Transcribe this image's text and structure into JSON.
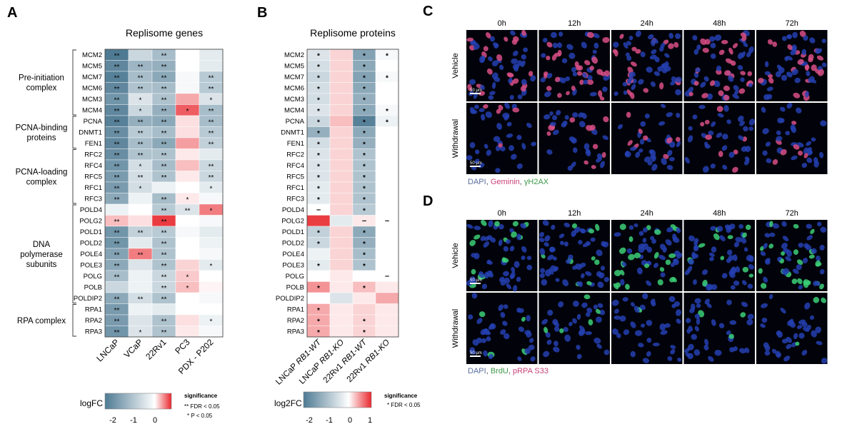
{
  "panelA": {
    "letter": "A",
    "title": "Replisome genes",
    "genes": [
      "MCM2",
      "MCM5",
      "MCM7",
      "MCM6",
      "MCM3",
      "MCM4",
      "PCNA",
      "DNMT1",
      "FEN1",
      "RFC2",
      "RFC4",
      "RFC5",
      "RFC1",
      "RFC3",
      "POLD4",
      "POLG2",
      "POLD1",
      "POLD2",
      "POLE4",
      "POLE3",
      "POLG",
      "POLB",
      "POLDIP2",
      "RPA1",
      "RPA2",
      "RPA3"
    ],
    "columns": [
      "LNCaP",
      "VCaP",
      "22Rv1",
      "PC3",
      "PDX - P202"
    ],
    "groups": [
      {
        "name": "Pre-initiation\ncomplex",
        "start": 0,
        "end": 5
      },
      {
        "name": "PCNA-binding\nproteins",
        "start": 6,
        "end": 8
      },
      {
        "name": "PCNA-loading\ncomplex",
        "start": 9,
        "end": 13
      },
      {
        "name": "DNA\npolymerase\nsubunits",
        "start": 14,
        "end": 22
      },
      {
        "name": "RPA complex",
        "start": 23,
        "end": 25
      }
    ],
    "logfc": [
      [
        -2.0,
        -0.6,
        -1.0,
        0.0,
        -0.3
      ],
      [
        -1.8,
        -1.1,
        -1.2,
        0.0,
        -0.3
      ],
      [
        -1.9,
        -1.0,
        -1.3,
        -0.1,
        -0.8
      ],
      [
        -1.8,
        -0.9,
        -1.0,
        -0.1,
        -0.8
      ],
      [
        -1.6,
        -0.4,
        -0.9,
        0.8,
        -0.4
      ],
      [
        -1.8,
        -0.6,
        -1.2,
        1.5,
        -1.0
      ],
      [
        -1.9,
        -1.2,
        -1.3,
        0.3,
        -1.0
      ],
      [
        -1.7,
        -0.8,
        -1.0,
        0.3,
        -0.8
      ],
      [
        -1.8,
        -1.0,
        -1.3,
        0.9,
        -0.7
      ],
      [
        -1.7,
        -0.9,
        -0.9,
        0.2,
        -0.3
      ],
      [
        -1.6,
        -0.5,
        -1.0,
        0.6,
        -0.6
      ],
      [
        -1.5,
        -0.5,
        -0.9,
        0.2,
        -0.6
      ],
      [
        -1.5,
        -0.5,
        -0.2,
        0.0,
        -0.3
      ],
      [
        -1.3,
        -0.2,
        -1.0,
        0.2,
        -0.1
      ],
      [
        -0.2,
        0.0,
        -0.8,
        -0.4,
        1.2
      ],
      [
        0.6,
        0.3,
        1.8,
        0.0,
        -0.1
      ],
      [
        -1.6,
        -0.7,
        -0.8,
        -0.1,
        -0.3
      ],
      [
        -1.6,
        -0.3,
        -0.9,
        0.0,
        -0.2
      ],
      [
        -1.4,
        1.2,
        -0.9,
        0.0,
        -0.1
      ],
      [
        -1.3,
        -0.4,
        -0.9,
        0.4,
        -0.3
      ],
      [
        -1.0,
        -0.2,
        -0.6,
        0.5,
        0.0
      ],
      [
        -0.6,
        -0.2,
        -0.6,
        0.6,
        0.1
      ],
      [
        -1.3,
        -0.5,
        -0.9,
        0.0,
        -0.1
      ],
      [
        -1.5,
        -0.2,
        -0.3,
        0.0,
        0.0
      ],
      [
        -1.5,
        -0.4,
        -0.9,
        0.3,
        -0.2
      ],
      [
        -1.6,
        -0.4,
        -0.9,
        0.2,
        -0.1
      ]
    ],
    "sig": [
      [
        "**",
        "",
        "**",
        "",
        ""
      ],
      [
        "**",
        "**",
        "**",
        "",
        ""
      ],
      [
        "**",
        "**",
        "**",
        "",
        "**"
      ],
      [
        "**",
        "**",
        "**",
        "",
        "**"
      ],
      [
        "**",
        "*",
        "**",
        "",
        "*"
      ],
      [
        "**",
        "*",
        "**",
        "*",
        "**"
      ],
      [
        "**",
        "**",
        "**",
        "",
        "**"
      ],
      [
        "**",
        "**",
        "**",
        "",
        "**"
      ],
      [
        "**",
        "**",
        "**",
        "",
        "**"
      ],
      [
        "**",
        "**",
        "**",
        "",
        ""
      ],
      [
        "**",
        "*",
        "**",
        "",
        "**"
      ],
      [
        "**",
        "**",
        "**",
        "",
        "**"
      ],
      [
        "**",
        "*",
        "",
        "",
        "*"
      ],
      [
        "**",
        "",
        "**",
        "*",
        ""
      ],
      [
        "",
        "",
        "**",
        "**",
        "*"
      ],
      [
        "**",
        "",
        "**",
        "",
        ""
      ],
      [
        "**",
        "**",
        "**",
        "",
        ""
      ],
      [
        "**",
        "",
        "**",
        "",
        ""
      ],
      [
        "**",
        "**",
        "**",
        "",
        ""
      ],
      [
        "**",
        "",
        "**",
        "",
        "*"
      ],
      [
        "**",
        "",
        "**",
        "*",
        ""
      ],
      [
        "",
        "",
        "**",
        "*",
        ""
      ],
      [
        "**",
        "**",
        "**",
        "",
        ""
      ],
      [
        "**",
        "",
        "",
        "",
        ""
      ],
      [
        "**",
        "",
        "**",
        "",
        "*"
      ],
      [
        "**",
        "*",
        "**",
        "",
        ""
      ]
    ],
    "legend": {
      "label": "logFC",
      "ticks": [
        "-2",
        "-1",
        "0"
      ],
      "sig_title": "significance",
      "sig_lines": [
        "** FDR < 0.05",
        "* P < 0.05"
      ]
    }
  },
  "panelB": {
    "letter": "B",
    "title": "Replisome proteins",
    "proteins": [
      "MCM2",
      "MCM5",
      "MCM7",
      "MCM6",
      "MCM3",
      "MCM4",
      "PCNA",
      "DNMT1",
      "FEN1",
      "RFC2",
      "RFC4",
      "RFC5",
      "RFC1",
      "RFC3",
      "POLD4",
      "POLG2",
      "POLD1",
      "POLD2",
      "POLE4",
      "POLE3",
      "POLG",
      "POLB",
      "POLDIP2",
      "RPA1",
      "RPA2",
      "RPA3"
    ],
    "columns": [
      "LNCaP RB1-WT",
      "LNCaP RB1-KO",
      "22Rv1 RB1-WT",
      "22Rv1 RB1-KO"
    ],
    "logfc": [
      [
        -0.4,
        0.2,
        -1.4,
        -0.1
      ],
      [
        -0.5,
        0.2,
        -1.3,
        0.0
      ],
      [
        -0.6,
        0.2,
        -1.4,
        -0.1
      ],
      [
        -0.5,
        0.2,
        -1.3,
        0.0
      ],
      [
        -0.5,
        0.2,
        -1.2,
        0.0
      ],
      [
        -0.4,
        0.2,
        -1.3,
        -0.1
      ],
      [
        -0.6,
        0.3,
        -1.9,
        -0.2
      ],
      [
        -1.2,
        0.2,
        -1.3,
        0.0
      ],
      [
        -0.5,
        0.2,
        -1.2,
        0.0
      ],
      [
        -0.4,
        0.2,
        -0.9,
        0.0
      ],
      [
        -0.4,
        0.2,
        -0.9,
        0.0
      ],
      [
        -0.4,
        0.2,
        -0.9,
        0.0
      ],
      [
        -0.3,
        0.2,
        -0.9,
        0.0
      ],
      [
        -0.3,
        0.2,
        -0.9,
        0.0
      ],
      [
        0.0,
        0.2,
        -0.8,
        0.0
      ],
      [
        0.9,
        -0.3,
        0.1,
        0.0
      ],
      [
        -0.7,
        0.2,
        -1.3,
        0.0
      ],
      [
        -0.6,
        0.2,
        -1.2,
        0.0
      ],
      [
        -0.2,
        0.2,
        -1.0,
        0.0
      ],
      [
        -0.3,
        0.2,
        -0.9,
        0.0
      ],
      [
        0.0,
        0.1,
        0.0,
        0.0
      ],
      [
        0.5,
        0.1,
        0.3,
        0.1
      ],
      [
        0.0,
        -0.4,
        0.1,
        0.4
      ],
      [
        0.4,
        0.1,
        0.2,
        0.1
      ],
      [
        0.4,
        0.1,
        0.2,
        0.1
      ],
      [
        0.4,
        0.1,
        0.2,
        0.1
      ]
    ],
    "sig": [
      [
        "*",
        "",
        "*",
        "*"
      ],
      [
        "*",
        "",
        "*",
        ""
      ],
      [
        "*",
        "",
        "*",
        "*"
      ],
      [
        "*",
        "",
        "*",
        ""
      ],
      [
        "*",
        "",
        "*",
        ""
      ],
      [
        "*",
        "",
        "*",
        "*"
      ],
      [
        "*",
        "",
        "*",
        "*"
      ],
      [
        "*",
        "",
        "*",
        ""
      ],
      [
        "*",
        "",
        "*",
        ""
      ],
      [
        "*",
        "",
        "*",
        ""
      ],
      [
        "*",
        "",
        "*",
        ""
      ],
      [
        "*",
        "",
        "*",
        ""
      ],
      [
        "*",
        "",
        "*",
        ""
      ],
      [
        "*",
        "",
        "*",
        ""
      ],
      [
        "–",
        "",
        "*",
        ""
      ],
      [
        "",
        "",
        "–",
        "–"
      ],
      [
        "*",
        "",
        "*",
        ""
      ],
      [
        "*",
        "",
        "*",
        ""
      ],
      [
        "",
        "",
        "*",
        ""
      ],
      [
        "*",
        "",
        "*",
        ""
      ],
      [
        "",
        "",
        "",
        "–"
      ],
      [
        "*",
        "",
        "*",
        ""
      ],
      [
        "",
        "",
        "",
        ""
      ],
      [
        "*",
        "",
        "",
        ""
      ],
      [
        "*",
        "",
        "*",
        ""
      ],
      [
        "*",
        "",
        "*",
        ""
      ]
    ],
    "legend": {
      "label": "log2FC",
      "ticks": [
        "-2",
        "-1",
        "0",
        "1"
      ],
      "sig_title": "significance",
      "sig_lines": [
        "* FDR < 0.05"
      ]
    }
  },
  "panelC": {
    "letter": "C",
    "timepoints": [
      "0h",
      "12h",
      "24h",
      "48h",
      "72h"
    ],
    "rows": [
      "Vehicle",
      "Withdrawal"
    ],
    "scale_bar": "50 µm",
    "stain_legend": [
      {
        "text": "DAPI",
        "color": "#5a6f9e"
      },
      {
        "text": ", ",
        "color": "#555555"
      },
      {
        "text": "Geminin",
        "color": "#c9437a"
      },
      {
        "text": ", ",
        "color": "#555555"
      },
      {
        "text": "γH2AX",
        "color": "#3f9a4a"
      }
    ]
  },
  "panelD": {
    "letter": "D",
    "timepoints": [
      "0h",
      "12h",
      "24h",
      "48h",
      "72h"
    ],
    "rows": [
      "Vehicle",
      "Withdrawal"
    ],
    "scale_bar": "50 µm",
    "stain_legend": [
      {
        "text": "DAPI",
        "color": "#5a6f9e"
      },
      {
        "text": ", ",
        "color": "#555555"
      },
      {
        "text": "BrdU",
        "color": "#3f9a4a"
      },
      {
        "text": ", ",
        "color": "#555555"
      },
      {
        "text": "pRPA S33",
        "color": "#c9437a"
      }
    ]
  },
  "colors": {
    "blue_end": "#4e7a93",
    "white": "#ffffff",
    "red_end": "#e8272d",
    "nucleus": "#2a44b8",
    "geminin": "#e0508a",
    "brdu": "#39d27a"
  }
}
